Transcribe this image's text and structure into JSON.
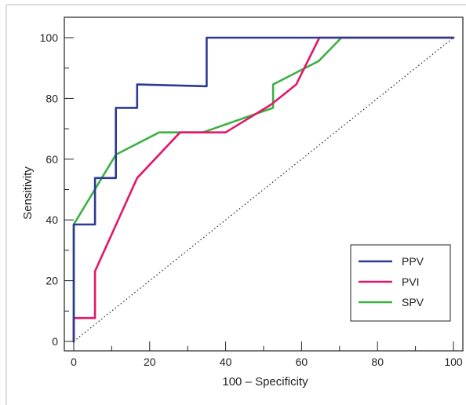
{
  "chart_data": {
    "type": "line",
    "title": "",
    "xlabel": "100 – Specificity",
    "ylabel": "Sensitivity",
    "xlim": [
      0,
      100
    ],
    "ylim": [
      0,
      100
    ],
    "x_ticks": [
      0,
      20,
      40,
      60,
      80,
      100
    ],
    "y_ticks": [
      0,
      20,
      40,
      60,
      80,
      100
    ],
    "legend_position": "bottom-right",
    "reference_line": {
      "style": "dotted",
      "color": "#222222",
      "from": [
        0,
        0
      ],
      "to": [
        100,
        100
      ]
    },
    "series": [
      {
        "name": "PPV",
        "color": "#2b3a92",
        "points": [
          [
            0,
            0
          ],
          [
            0,
            38.5
          ],
          [
            5.6,
            38.5
          ],
          [
            5.6,
            53.8
          ],
          [
            11.1,
            53.8
          ],
          [
            11.1,
            76.9
          ],
          [
            16.7,
            76.9
          ],
          [
            16.7,
            84.6
          ],
          [
            35,
            84
          ],
          [
            35,
            100
          ],
          [
            64,
            100
          ],
          [
            100,
            100
          ]
        ]
      },
      {
        "name": "PVI",
        "color": "#e2176a",
        "points": [
          [
            0,
            0
          ],
          [
            0,
            7.7
          ],
          [
            5.6,
            7.7
          ],
          [
            5.6,
            23.1
          ],
          [
            16.7,
            53.8
          ],
          [
            28,
            68.8
          ],
          [
            40,
            68.8
          ],
          [
            52,
            78
          ],
          [
            58.6,
            84.6
          ],
          [
            64.7,
            100
          ],
          [
            100,
            100
          ]
        ]
      },
      {
        "name": "SPV",
        "color": "#3cb043",
        "points": [
          [
            0,
            0
          ],
          [
            0,
            38.5
          ],
          [
            11.1,
            61.5
          ],
          [
            22.5,
            68.8
          ],
          [
            34,
            68.8
          ],
          [
            52.5,
            76.9
          ],
          [
            52.5,
            84.6
          ],
          [
            64.5,
            92.3
          ],
          [
            70.5,
            100
          ],
          [
            100,
            100
          ]
        ]
      }
    ]
  }
}
